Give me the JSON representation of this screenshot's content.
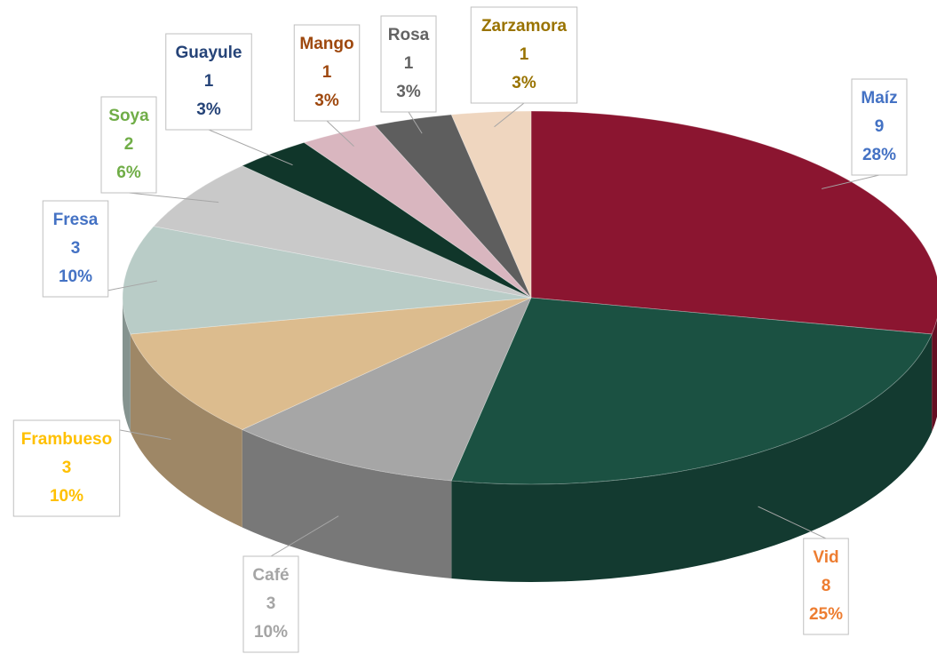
{
  "chart_data": {
    "type": "pie",
    "categories": [
      "Maíz",
      "Vid",
      "Café",
      "Frambueso",
      "Fresa",
      "Soya",
      "Guayule",
      "Mango",
      "Rosa",
      "Zarzamora"
    ],
    "values": [
      9,
      8,
      3,
      3,
      3,
      2,
      1,
      1,
      1,
      1
    ],
    "percent_labels": [
      "28%",
      "25%",
      "10%",
      "10%",
      "10%",
      "6%",
      "3%",
      "3%",
      "3%",
      "3%"
    ],
    "colors": [
      "#8b1530",
      "#1b5142",
      "#a6a6a6",
      "#dcbc8e",
      "#b9ccc7",
      "#c9c9c9",
      "#10362a",
      "#d9b6bf",
      "#5e5e5e",
      "#efd6bf"
    ],
    "label_colors": [
      "#4472c4",
      "#ed7d31",
      "#a5a5a5",
      "#ffc000",
      "#4472c4",
      "#70ad47",
      "#264478",
      "#9e480e",
      "#636363",
      "#997300"
    ]
  }
}
